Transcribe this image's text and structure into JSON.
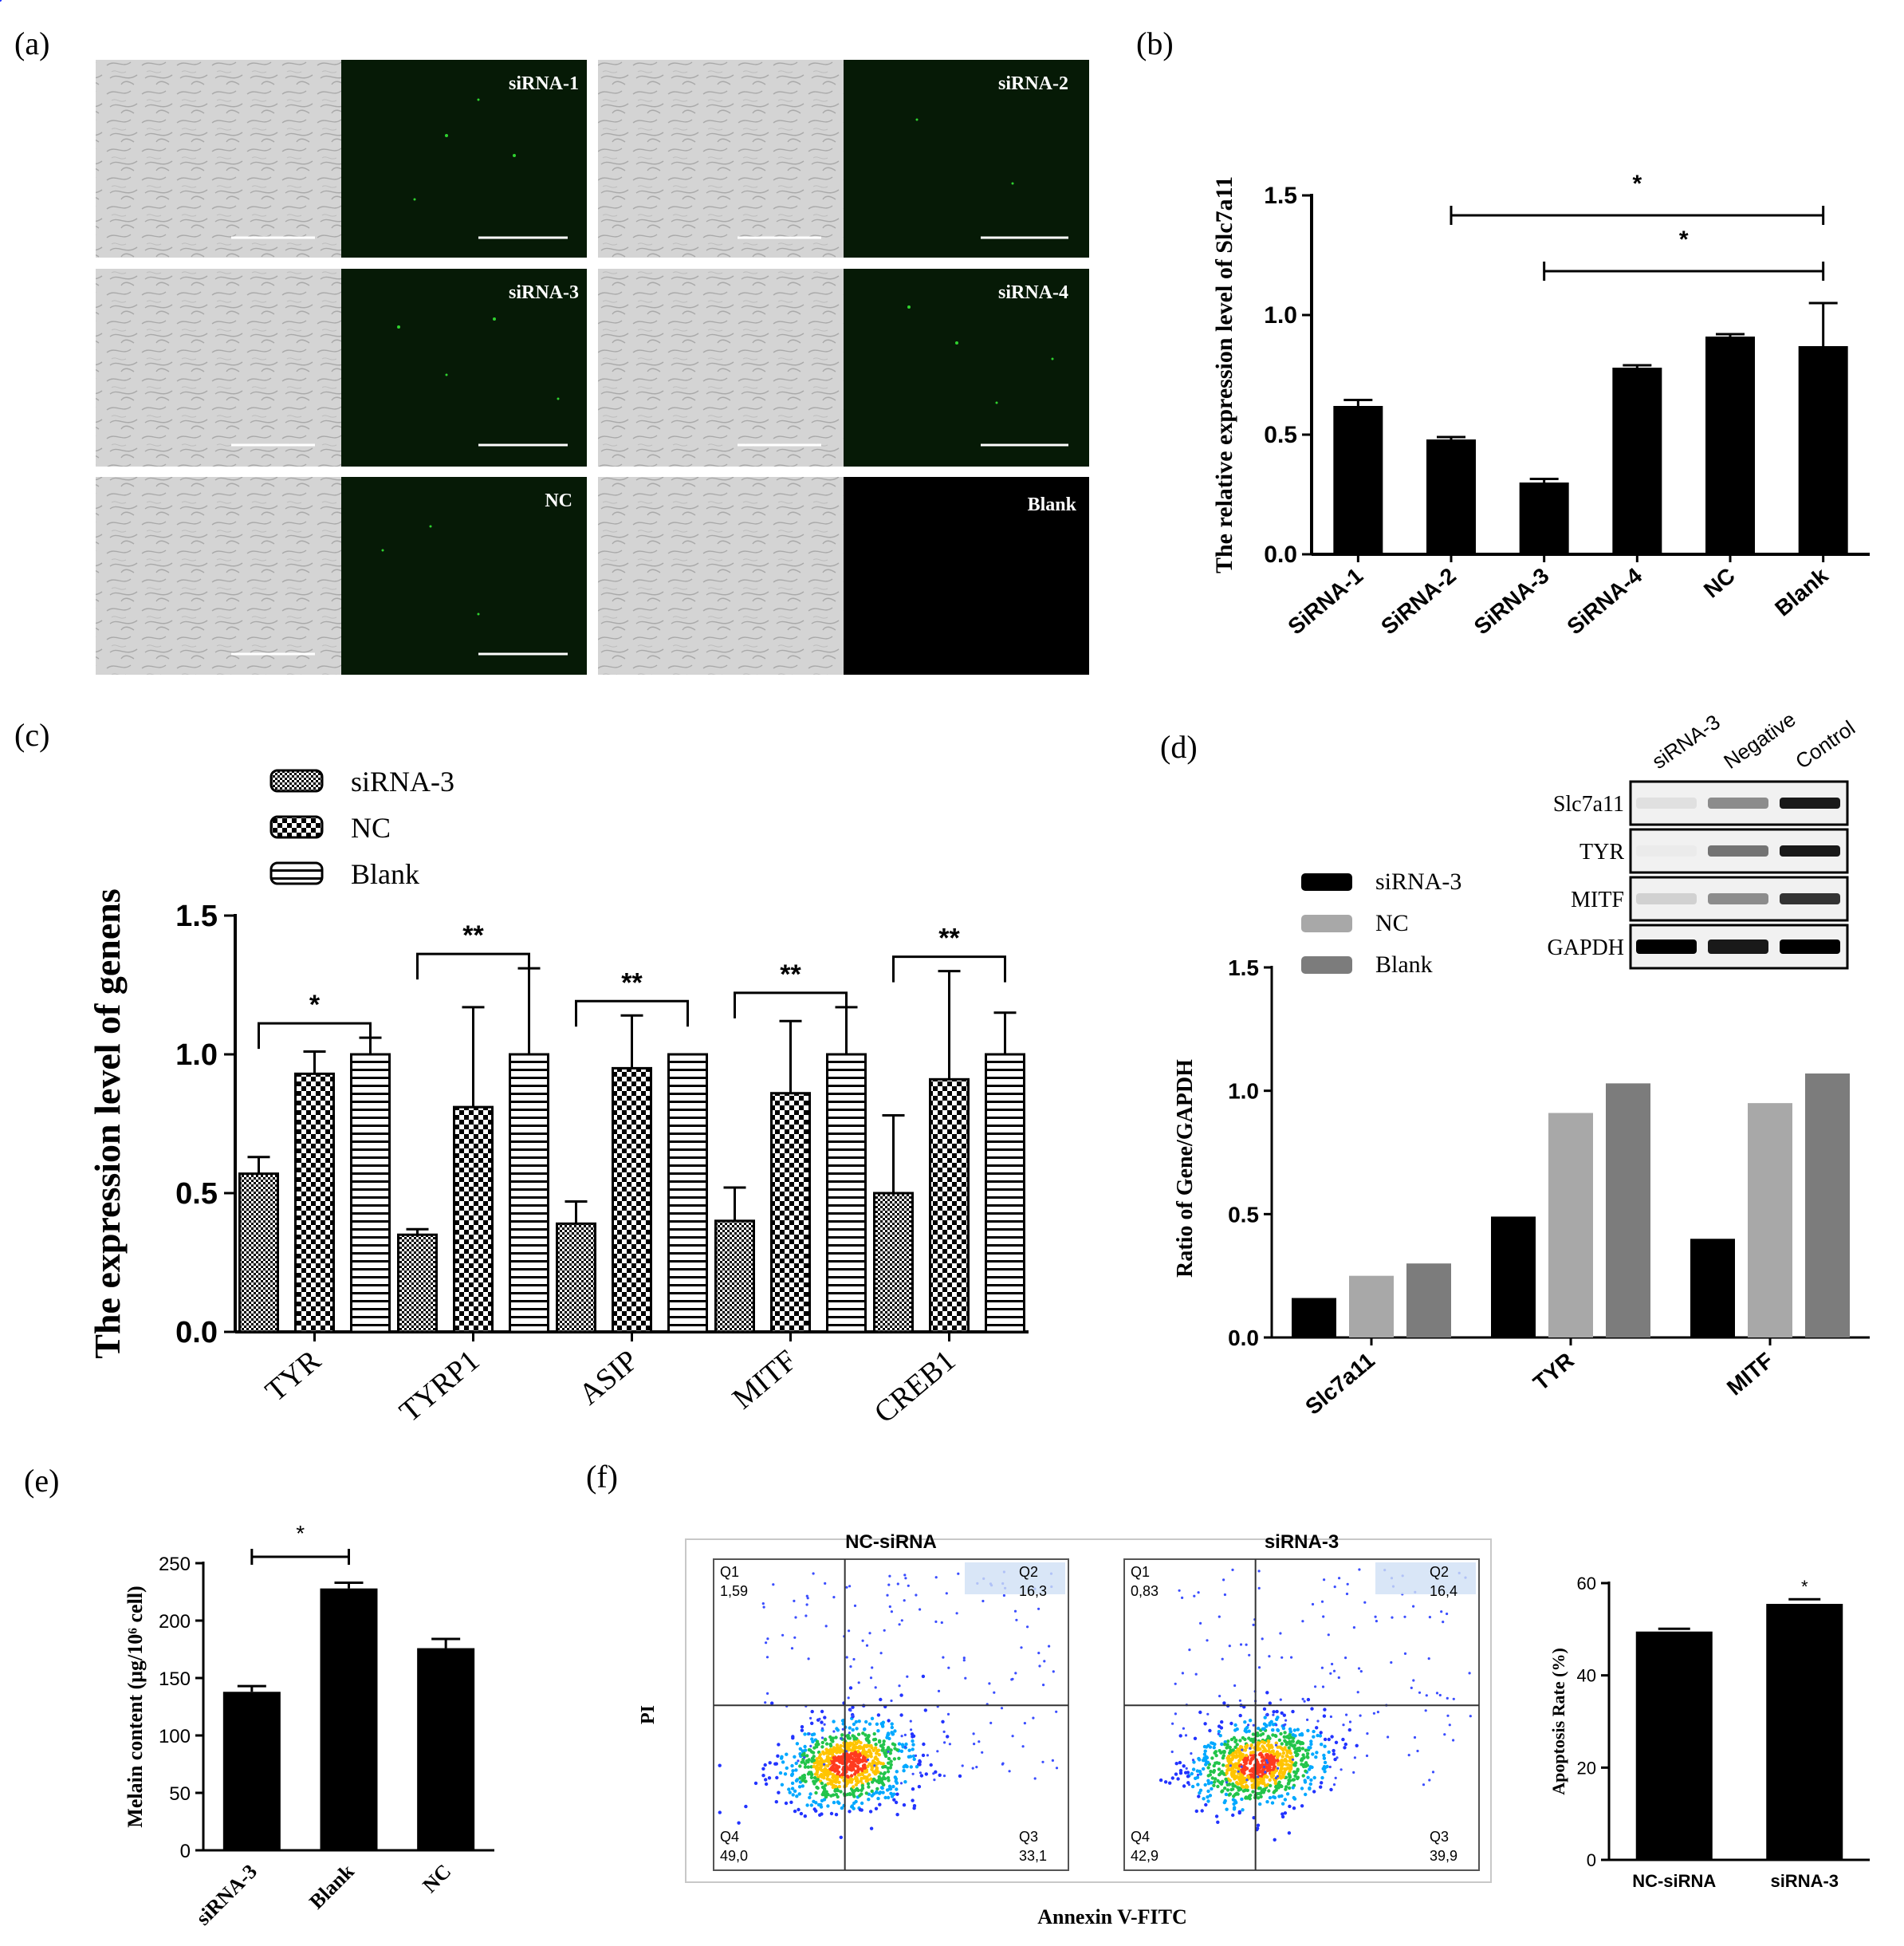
{
  "panel_letters": {
    "a": "(a)",
    "b": "(b)",
    "c": "(c)",
    "d": "(d)",
    "e": "(e)",
    "f": "(f)"
  },
  "panel_a": {
    "labels": [
      "siRNA-1",
      "siRNA-2",
      "siRNA-3",
      "siRNA-4",
      "NC",
      "Blank"
    ]
  },
  "chart_data": [
    {
      "panel": "b",
      "type": "bar",
      "ylabel": "The relative expression level of Slc7a11",
      "categories": [
        "SiRNA-1",
        "SiRNA-2",
        "SiRNA-3",
        "SiRNA-4",
        "NC",
        "Blank"
      ],
      "values": [
        0.62,
        0.48,
        0.3,
        0.78,
        0.91,
        0.87
      ],
      "errors": [
        0.025,
        0.01,
        0.015,
        0.01,
        0.01,
        0.18
      ],
      "ylim": [
        0,
        1.5
      ],
      "yticks": [
        "0.0",
        "0.5",
        "1.0",
        "1.5"
      ],
      "significance": [
        {
          "from": "SiRNA-2",
          "to": "Blank",
          "label": "*"
        },
        {
          "from": "SiRNA-3",
          "to": "Blank",
          "label": "*"
        }
      ]
    },
    {
      "panel": "c",
      "type": "bar",
      "ylabel": "The expression level of genens",
      "categories": [
        "TYR",
        "TYRP1",
        "ASIP",
        "MITF",
        "CREB1"
      ],
      "series": [
        {
          "name": "siRNA-3",
          "values": [
            0.57,
            0.35,
            0.39,
            0.4,
            0.5
          ],
          "errors": [
            0.06,
            0.02,
            0.08,
            0.12,
            0.28
          ]
        },
        {
          "name": "NC",
          "values": [
            0.93,
            0.81,
            0.95,
            0.86,
            0.91
          ],
          "errors": [
            0.08,
            0.36,
            0.19,
            0.26,
            0.39
          ]
        },
        {
          "name": "Blank",
          "values": [
            1.0,
            1.0,
            1.0,
            1.0,
            1.0
          ],
          "errors": [
            0.06,
            0.31,
            0.0,
            0.17,
            0.15
          ]
        }
      ],
      "ylim": [
        0,
        1.5
      ],
      "yticks": [
        "0.0",
        "0.5",
        "1.0",
        "1.5"
      ],
      "significance": [
        "*",
        "**",
        "**",
        "**",
        "**"
      ]
    },
    {
      "panel": "d",
      "type": "bar",
      "ylabel": "Ratio of Gene/GAPDH",
      "categories": [
        "Slc7a11",
        "TYR",
        "MITF"
      ],
      "series": [
        {
          "name": "siRNA-3",
          "values": [
            0.16,
            0.49,
            0.4
          ]
        },
        {
          "name": "NC",
          "values": [
            0.25,
            0.91,
            0.95
          ]
        },
        {
          "name": "Blank",
          "values": [
            0.3,
            1.03,
            1.07
          ]
        }
      ],
      "ylim": [
        0,
        1.5
      ],
      "yticks": [
        "0.0",
        "0.5",
        "1.0",
        "1.5"
      ],
      "blot": {
        "lanes": [
          "siRNA-3",
          "Negative",
          "Control"
        ],
        "rows": [
          "Slc7a11",
          "TYR",
          "MITF",
          "GAPDH"
        ]
      }
    },
    {
      "panel": "e",
      "type": "bar",
      "ylabel": "Melain content (μg/10⁶ cell)",
      "categories": [
        "siRNA-3",
        "Blank",
        "NC"
      ],
      "values": [
        138,
        228,
        176
      ],
      "errors": [
        5,
        5,
        8
      ],
      "ylim": [
        0,
        250
      ],
      "yticks": [
        "0",
        "50",
        "100",
        "150",
        "200",
        "250"
      ],
      "significance": [
        {
          "from": "siRNA-3",
          "to": "Blank",
          "label": "*"
        }
      ]
    },
    {
      "panel": "f",
      "type": "bar",
      "ylabel": "Apoptosis Rate (%)",
      "categories": [
        "NC-siRNA",
        "siRNA-3"
      ],
      "values": [
        49.5,
        55.5
      ],
      "errors": [
        0.6,
        1.0
      ],
      "ylim": [
        0,
        60
      ],
      "yticks": [
        "0",
        "20",
        "40",
        "60"
      ],
      "significance": [
        {
          "over": "siRNA-3",
          "label": "*"
        }
      ]
    }
  ],
  "flow": {
    "xlabel": "Annexin V-FITC",
    "ylabel": "PI",
    "plots": [
      {
        "title": "NC-siRNA",
        "q1_label": "Q1",
        "q1": "1,59",
        "q2_label": "Q2",
        "q2": "16,3",
        "q3_label": "Q3",
        "q3": "33,1",
        "q4_label": "Q4",
        "q4": "49,0"
      },
      {
        "title": "siRNA-3",
        "q1_label": "Q1",
        "q1": "0,83",
        "q2_label": "Q2",
        "q2": "16,4",
        "q3_label": "Q3",
        "q3": "39,9",
        "q4_label": "Q4",
        "q4": "42,9"
      }
    ]
  },
  "colors": {
    "black_bar": "#000000",
    "nc_gray": "#a8a8a8",
    "blank_gray": "#7c7c7c",
    "fluor_bg": "#061a06",
    "bright_bg": "#d5d5d5"
  }
}
